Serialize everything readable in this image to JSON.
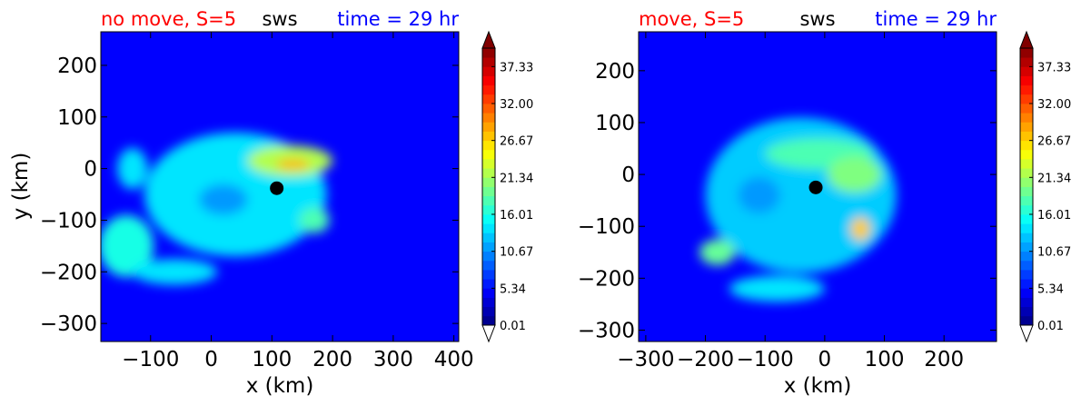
{
  "chart_data": [
    {
      "type": "heatmap",
      "title_left": "no move, S=5",
      "title_center": "sws",
      "title_right": "time = 29 hr",
      "title_colors": {
        "left": "#ff0000",
        "center": "#000000",
        "right": "#0000ff"
      },
      "xlabel": "x (km)",
      "ylabel": "y (km)",
      "xlim": [
        -182,
        408
      ],
      "ylim": [
        -335,
        265
      ],
      "xticks": [
        -100,
        0,
        100,
        200,
        300,
        400
      ],
      "xtick_labels": [
        "−100",
        "0",
        "100",
        "200",
        "300",
        "400"
      ],
      "yticks": [
        200,
        100,
        0,
        -100,
        -200,
        -300
      ],
      "ytick_labels": [
        "200",
        "100",
        "0",
        "−100",
        "−200",
        "−300"
      ],
      "center_marker": {
        "x": 108,
        "y": -38
      },
      "colorbar": {
        "min": 0.01,
        "max": 40,
        "ticks": [
          0.01,
          5.34,
          10.67,
          16.01,
          21.34,
          26.67,
          32.0,
          37.33
        ],
        "tick_labels": [
          "0.01",
          "5.34",
          "10.67",
          "16.01",
          "21.34",
          "26.67",
          "32.00",
          "37.33"
        ],
        "extend": "both"
      },
      "features": [
        {
          "x": 40,
          "y": -50,
          "rx": 150,
          "ry": 120,
          "value": 14
        },
        {
          "x": 130,
          "y": 15,
          "rx": 70,
          "ry": 30,
          "value": 22
        },
        {
          "x": 135,
          "y": 8,
          "rx": 28,
          "ry": 10,
          "value": 28
        },
        {
          "x": -140,
          "y": -150,
          "rx": 45,
          "ry": 60,
          "value": 16
        },
        {
          "x": -60,
          "y": -200,
          "rx": 70,
          "ry": 25,
          "value": 14
        },
        {
          "x": -130,
          "y": 0,
          "rx": 25,
          "ry": 40,
          "value": 14
        },
        {
          "x": 170,
          "y": -100,
          "rx": 25,
          "ry": 25,
          "value": 18
        },
        {
          "x": 20,
          "y": -60,
          "rx": 40,
          "ry": 30,
          "value": 11
        }
      ]
    },
    {
      "type": "heatmap",
      "title_left": "move, S=5",
      "title_center": "sws",
      "title_right": "time = 29 hr",
      "title_colors": {
        "left": "#ff0000",
        "center": "#000000",
        "right": "#0000ff"
      },
      "xlabel": "x (km)",
      "ylabel": "",
      "xlim": [
        -312,
        288
      ],
      "ylim": [
        -322,
        275
      ],
      "xticks": [
        -300,
        -200,
        -100,
        0,
        100,
        200
      ],
      "xtick_labels": [
        "−300",
        "−200",
        "−100",
        "0",
        "100",
        "200"
      ],
      "yticks": [
        200,
        100,
        0,
        -100,
        -200,
        -300
      ],
      "ytick_labels": [
        "200",
        "100",
        "0",
        "−100",
        "−200",
        "−300"
      ],
      "center_marker": {
        "x": -15,
        "y": -25
      },
      "colorbar": {
        "min": 0.01,
        "max": 40,
        "ticks": [
          0.01,
          5.34,
          10.67,
          16.01,
          21.34,
          26.67,
          32.0,
          37.33
        ],
        "tick_labels": [
          "0.01",
          "5.34",
          "10.67",
          "16.01",
          "21.34",
          "26.67",
          "32.00",
          "37.33"
        ],
        "extend": "both"
      },
      "features": [
        {
          "x": -40,
          "y": -40,
          "rx": 160,
          "ry": 150,
          "value": 13
        },
        {
          "x": -10,
          "y": 40,
          "rx": 90,
          "ry": 30,
          "value": 18
        },
        {
          "x": 50,
          "y": 0,
          "rx": 45,
          "ry": 35,
          "value": 20
        },
        {
          "x": 60,
          "y": -105,
          "rx": 16,
          "ry": 22,
          "value": 27
        },
        {
          "x": -180,
          "y": -150,
          "rx": 30,
          "ry": 25,
          "value": 19
        },
        {
          "x": -110,
          "y": -40,
          "rx": 35,
          "ry": 35,
          "value": 11
        },
        {
          "x": -80,
          "y": -220,
          "rx": 80,
          "ry": 25,
          "value": 14
        }
      ]
    }
  ]
}
